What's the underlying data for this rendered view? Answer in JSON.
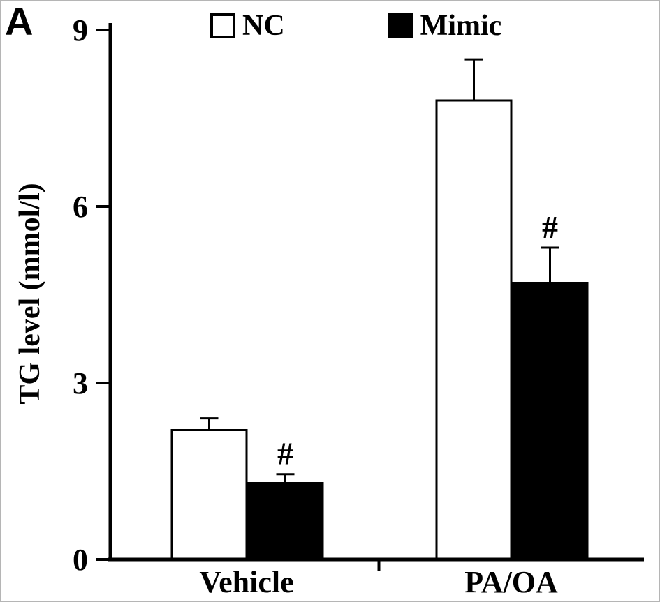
{
  "panel_label": "A",
  "colors": {
    "axis": "#000000",
    "background": "#ffffff",
    "nc_bar": "#ffffff",
    "mimic_bar": "#000000"
  },
  "chart_data": {
    "type": "bar",
    "title": "",
    "xlabel": "",
    "ylabel": "TG level (mmol/l)",
    "ylim": [
      0,
      9
    ],
    "yticks": [
      0,
      3,
      6,
      9
    ],
    "grid": false,
    "legend_position": "top",
    "categories": [
      "Vehicle",
      "PA/OA"
    ],
    "series": [
      {
        "name": "NC",
        "color": "#ffffff",
        "values": [
          2.2,
          7.8
        ],
        "errors": [
          0.2,
          0.7
        ]
      },
      {
        "name": "Mimic",
        "color": "#000000",
        "values": [
          1.3,
          4.7
        ],
        "errors": [
          0.15,
          0.6
        ]
      }
    ],
    "annotations": [
      {
        "text": "#",
        "category": "Vehicle",
        "series": "Mimic"
      },
      {
        "text": "#",
        "category": "PA/OA",
        "series": "Mimic"
      }
    ]
  }
}
